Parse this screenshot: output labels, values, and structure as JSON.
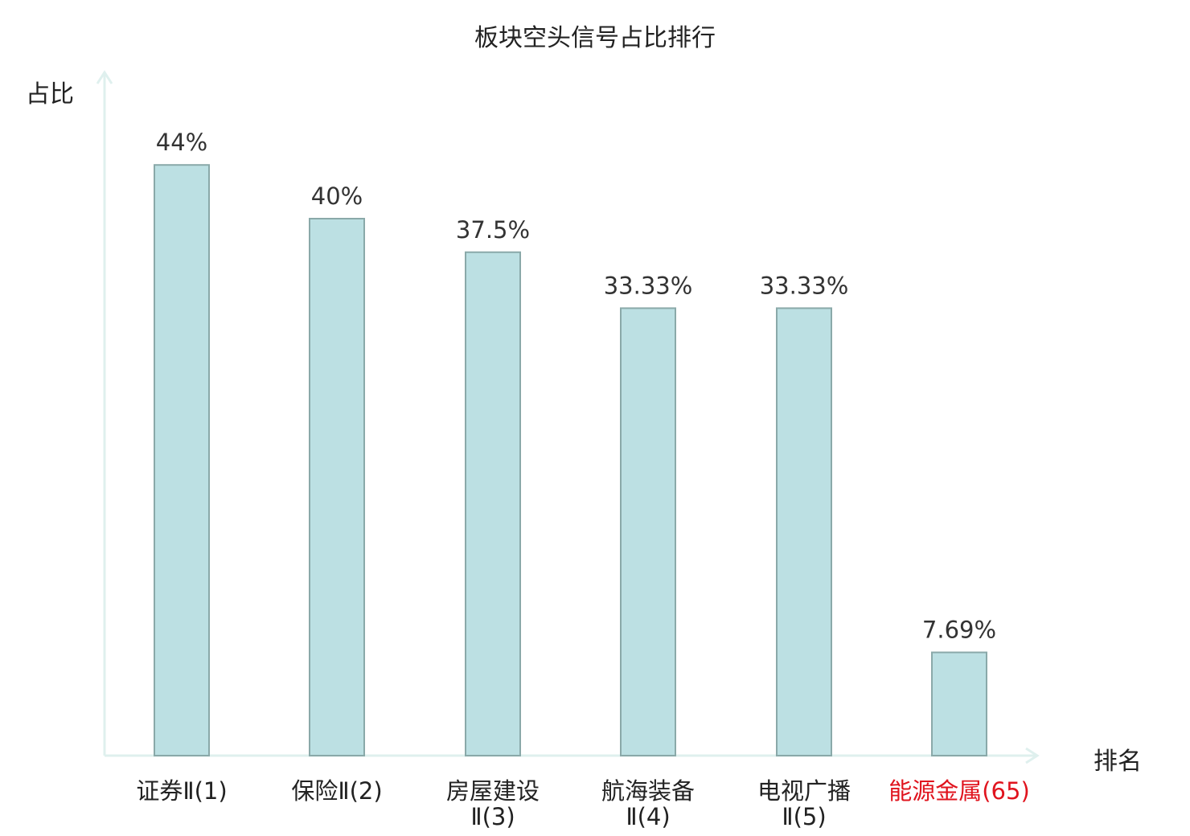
{
  "chart_data": {
    "type": "bar",
    "title": "板块空头信号占比排行",
    "ylabel": "占比",
    "xlabel": "排名",
    "ylim": [
      0,
      50
    ],
    "grid": false,
    "categories": [
      {
        "lines": [
          "证券Ⅱ(1)"
        ],
        "highlight": false
      },
      {
        "lines": [
          "保险Ⅱ(2)"
        ],
        "highlight": false
      },
      {
        "lines": [
          "房屋建设",
          "Ⅱ(3)"
        ],
        "highlight": false
      },
      {
        "lines": [
          "航海装备",
          "Ⅱ(4)"
        ],
        "highlight": false
      },
      {
        "lines": [
          "电视广播",
          "Ⅱ(5)"
        ],
        "highlight": false
      },
      {
        "lines": [
          "能源金属(65)"
        ],
        "highlight": true
      }
    ],
    "values": [
      44,
      40,
      37.5,
      33.33,
      33.33,
      7.69
    ],
    "value_labels": [
      "44%",
      "40%",
      "37.5%",
      "33.33%",
      "33.33%",
      "7.69%"
    ]
  },
  "colors": {
    "bar_fill": "#bce0e3",
    "bar_stroke": "#8aa9a9",
    "axis": "#dff0ee",
    "highlight_text": "#e0141e",
    "text": "#222222"
  }
}
